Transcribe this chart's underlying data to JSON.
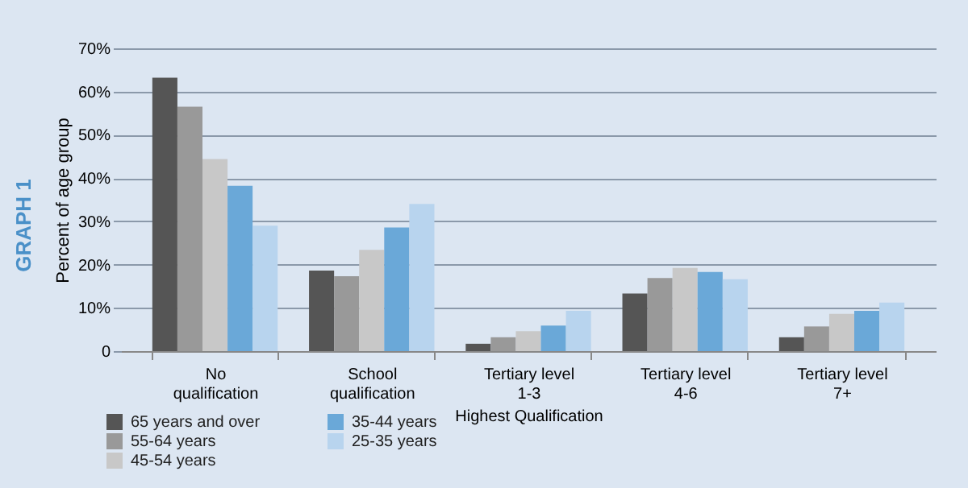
{
  "chart_data": {
    "type": "bar",
    "xlabel": "Highest Qualification",
    "ylabel": "Percent of age group",
    "annotations": [
      "GRAPH 1"
    ],
    "categories": [
      "No qualification",
      "School qualification",
      "Tertiary level 1-3",
      "Tertiary level 4-6",
      "Tertiary level 7+"
    ],
    "series": [
      {
        "name": "65 years and over",
        "color": "#555555",
        "values": [
          63.2,
          18.6,
          1.7,
          13.3,
          3.2
        ]
      },
      {
        "name": "55-64 years",
        "color": "#999999",
        "values": [
          56.5,
          17.3,
          3.2,
          16.9,
          5.7
        ]
      },
      {
        "name": "45-54 years",
        "color": "#c8c8c8",
        "values": [
          44.4,
          23.4,
          4.6,
          19.2,
          8.6
        ]
      },
      {
        "name": "35-44 years",
        "color": "#6aa8d8",
        "values": [
          38.2,
          28.6,
          5.9,
          18.3,
          9.3
        ]
      },
      {
        "name": "25-35 years",
        "color": "#b8d4ee",
        "values": [
          29,
          34,
          9.3,
          16.6,
          11.2
        ]
      }
    ],
    "ylim": [
      0,
      70
    ],
    "yticks": [
      {
        "value": 0,
        "label": "0"
      },
      {
        "value": 10,
        "label": "10%"
      },
      {
        "value": 20,
        "label": "20%"
      },
      {
        "value": 30,
        "label": "30%"
      },
      {
        "value": 40,
        "label": "40%"
      },
      {
        "value": 50,
        "label": "50%"
      },
      {
        "value": 60,
        "label": "60%"
      },
      {
        "value": 70,
        "label": "70%"
      }
    ],
    "grid": "y",
    "legend": "bottom left"
  }
}
